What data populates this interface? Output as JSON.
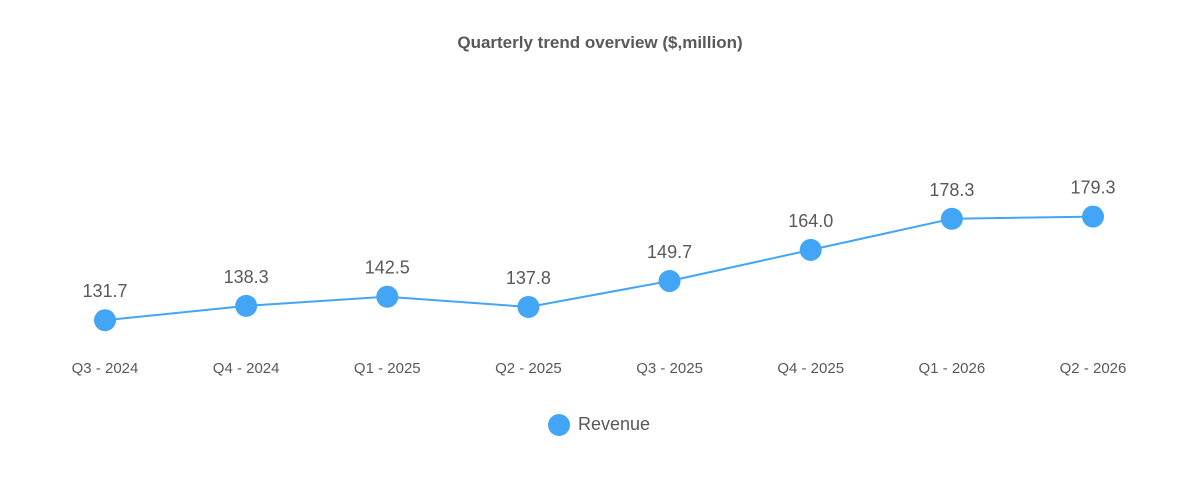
{
  "chart_data": {
    "type": "line",
    "title": "Quarterly trend overview ($,million)",
    "categories": [
      "Q3 - 2024",
      "Q4 - 2024",
      "Q1 - 2025",
      "Q2 - 2025",
      "Q3 - 2025",
      "Q4 - 2025",
      "Q1 - 2026",
      "Q2 - 2026"
    ],
    "series": [
      {
        "name": "Revenue",
        "color": "#42a5f5",
        "values": [
          131.7,
          138.3,
          142.5,
          137.8,
          149.7,
          164.0,
          178.3,
          179.3
        ],
        "labels": [
          "131.7",
          "138.3",
          "142.5",
          "137.8",
          "149.7",
          "164.0",
          "178.3",
          "179.3"
        ]
      }
    ],
    "ylim": [
      58.3,
      278.8
    ],
    "grid": false,
    "legend_position": "bottom-center"
  }
}
